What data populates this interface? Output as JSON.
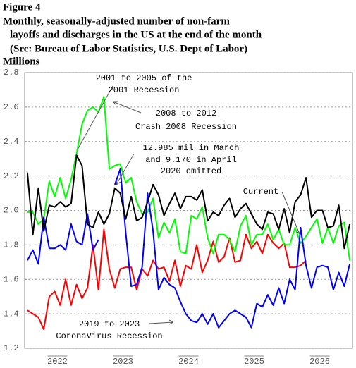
{
  "chart_data": {
    "type": "line",
    "title_lines": [
      "Figure 4",
      "Monthly, seasonally-adjusted number of non-farm",
      "layoffs and discharges in the US at the end of the month",
      "(Src: Bureau of Labor Statistics, U.S. Dept of Labor)"
    ],
    "ylabel": "Millions",
    "x": [
      1,
      2,
      3,
      4,
      5,
      6,
      7,
      8,
      9,
      10,
      11,
      12,
      13,
      14,
      15,
      16,
      17,
      18,
      19,
      20,
      21,
      22,
      23,
      24,
      25,
      26,
      27,
      28,
      29,
      30,
      31,
      32,
      33,
      34,
      35,
      36,
      37,
      38,
      39,
      40,
      41,
      42,
      43,
      44,
      45,
      46,
      47,
      48,
      49,
      50,
      51,
      52,
      53,
      54,
      55,
      56,
      57,
      58,
      59,
      60
    ],
    "xlim": [
      0.5,
      60.5
    ],
    "xticks": [
      {
        "value": 6.5,
        "label": "2022"
      },
      {
        "value": 18.5,
        "label": "2023"
      },
      {
        "value": 30.5,
        "label": "2024"
      },
      {
        "value": 42.5,
        "label": "2025"
      },
      {
        "value": 54.5,
        "label": "2026"
      }
    ],
    "ylim": [
      1.2,
      2.8
    ],
    "yticks": [
      1.2,
      1.4,
      1.6,
      1.8,
      {
        "value": 2,
        "label": "2.0"
      },
      2.2,
      2.4,
      2.6,
      2.8
    ],
    "grid": true,
    "series": [
      {
        "name": "2001 to 2005",
        "color": "#ff0000",
        "values": [
          1.42,
          1.4,
          1.38,
          1.31,
          1.5,
          1.53,
          1.45,
          1.6,
          1.45,
          1.57,
          1.49,
          1.55,
          1.8,
          1.54,
          1.89,
          1.66,
          1.55,
          1.66,
          1.67,
          1.67,
          1.54,
          1.66,
          1.62,
          1.71,
          1.66,
          1.67,
          1.59,
          1.71,
          1.56,
          1.68,
          1.66,
          1.8,
          1.64,
          1.71,
          1.82,
          1.7,
          1.73,
          1.84,
          1.7,
          1.71,
          1.86,
          1.78,
          1.82,
          1.75,
          1.86,
          1.81,
          1.78,
          1.81,
          1.67,
          1.67,
          1.68,
          1.71,
          null,
          null,
          null,
          null,
          null,
          null,
          null,
          null
        ]
      },
      {
        "name": "2008 to 2012",
        "color": "#00ff00",
        "values": [
          1.99,
          1.99,
          1.92,
          1.95,
          2.17,
          2.08,
          2.19,
          2.07,
          2.18,
          2.33,
          2.5,
          2.58,
          2.6,
          2.57,
          2.66,
          2.24,
          2.26,
          2.27,
          2.16,
          2.19,
          2.05,
          1.98,
          1.99,
          2.07,
          1.84,
          1.93,
          1.87,
          1.95,
          1.76,
          1.75,
          1.97,
          1.95,
          2.02,
          1.84,
          1.75,
          1.86,
          1.86,
          1.83,
          1.76,
          1.91,
          1.97,
          1.8,
          1.86,
          1.86,
          1.92,
          1.83,
          1.89,
          1.8,
          1.8,
          1.9,
          1.81,
          1.85,
          1.9,
          1.95,
          1.81,
          1.9,
          1.81,
          1.91,
          1.93,
          1.71
        ]
      },
      {
        "name": "2019 to 2023",
        "color": "#0000ff",
        "values": [
          1.71,
          1.77,
          1.69,
          1.96,
          1.78,
          1.78,
          1.8,
          1.77,
          1.92,
          1.82,
          1.8,
          1.98,
          1.77,
          1.83,
          null,
          null,
          2.15,
          2.24,
          1.87,
          1.56,
          1.57,
          1.67,
          2.1,
          1.88,
          1.54,
          1.61,
          1.57,
          1.55,
          1.47,
          1.4,
          1.36,
          1.35,
          1.4,
          1.34,
          1.4,
          1.32,
          1.36,
          1.4,
          1.42,
          1.4,
          1.38,
          1.32,
          1.46,
          1.44,
          1.51,
          1.45,
          1.55,
          1.46,
          1.6,
          1.54,
          1.9,
          1.68,
          1.55,
          1.67,
          1.68,
          1.67,
          1.54,
          1.64,
          1.56,
          1.69
        ]
      },
      {
        "name": "Current",
        "color": "#000000",
        "values": [
          2.22,
          1.86,
          2.13,
          1.88,
          2.03,
          2.02,
          2.05,
          2.02,
          2.04,
          2.32,
          2.26,
          1.92,
          1.9,
          1.99,
          1.92,
          1.98,
          2.13,
          2.1,
          1.95,
          2.08,
          1.94,
          1.96,
          2.05,
          2.15,
          2.09,
          1.97,
          2.04,
          2.1,
          2.01,
          2.08,
          2.08,
          2.06,
          2.12,
          1.94,
          1.99,
          1.97,
          2.03,
          2.07,
          1.96,
          2.01,
          2.04,
          1.98,
          1.92,
          1.89,
          1.99,
          1.98,
          1.89,
          2.01,
          1.87,
          2.05,
          2.09,
          2.19,
          1.96,
          2.0,
          2.0,
          1.9,
          1.91,
          2.03,
          1.78,
          1.92
        ]
      }
    ],
    "annotations": [
      {
        "lines": [
          "2001 to 2005 of the",
          "2001 Recession"
        ]
      },
      {
        "lines": [
          "2008 to 2012",
          "Crash 2008 Recession"
        ]
      },
      {
        "lines": [
          "12.985 mil in March",
          "and 9.170 in April",
          "2020 omitted"
        ]
      },
      {
        "lines": [
          "Current"
        ]
      },
      {
        "lines": [
          "2019 to 2023",
          "CoronaVirus Recession"
        ]
      }
    ]
  }
}
